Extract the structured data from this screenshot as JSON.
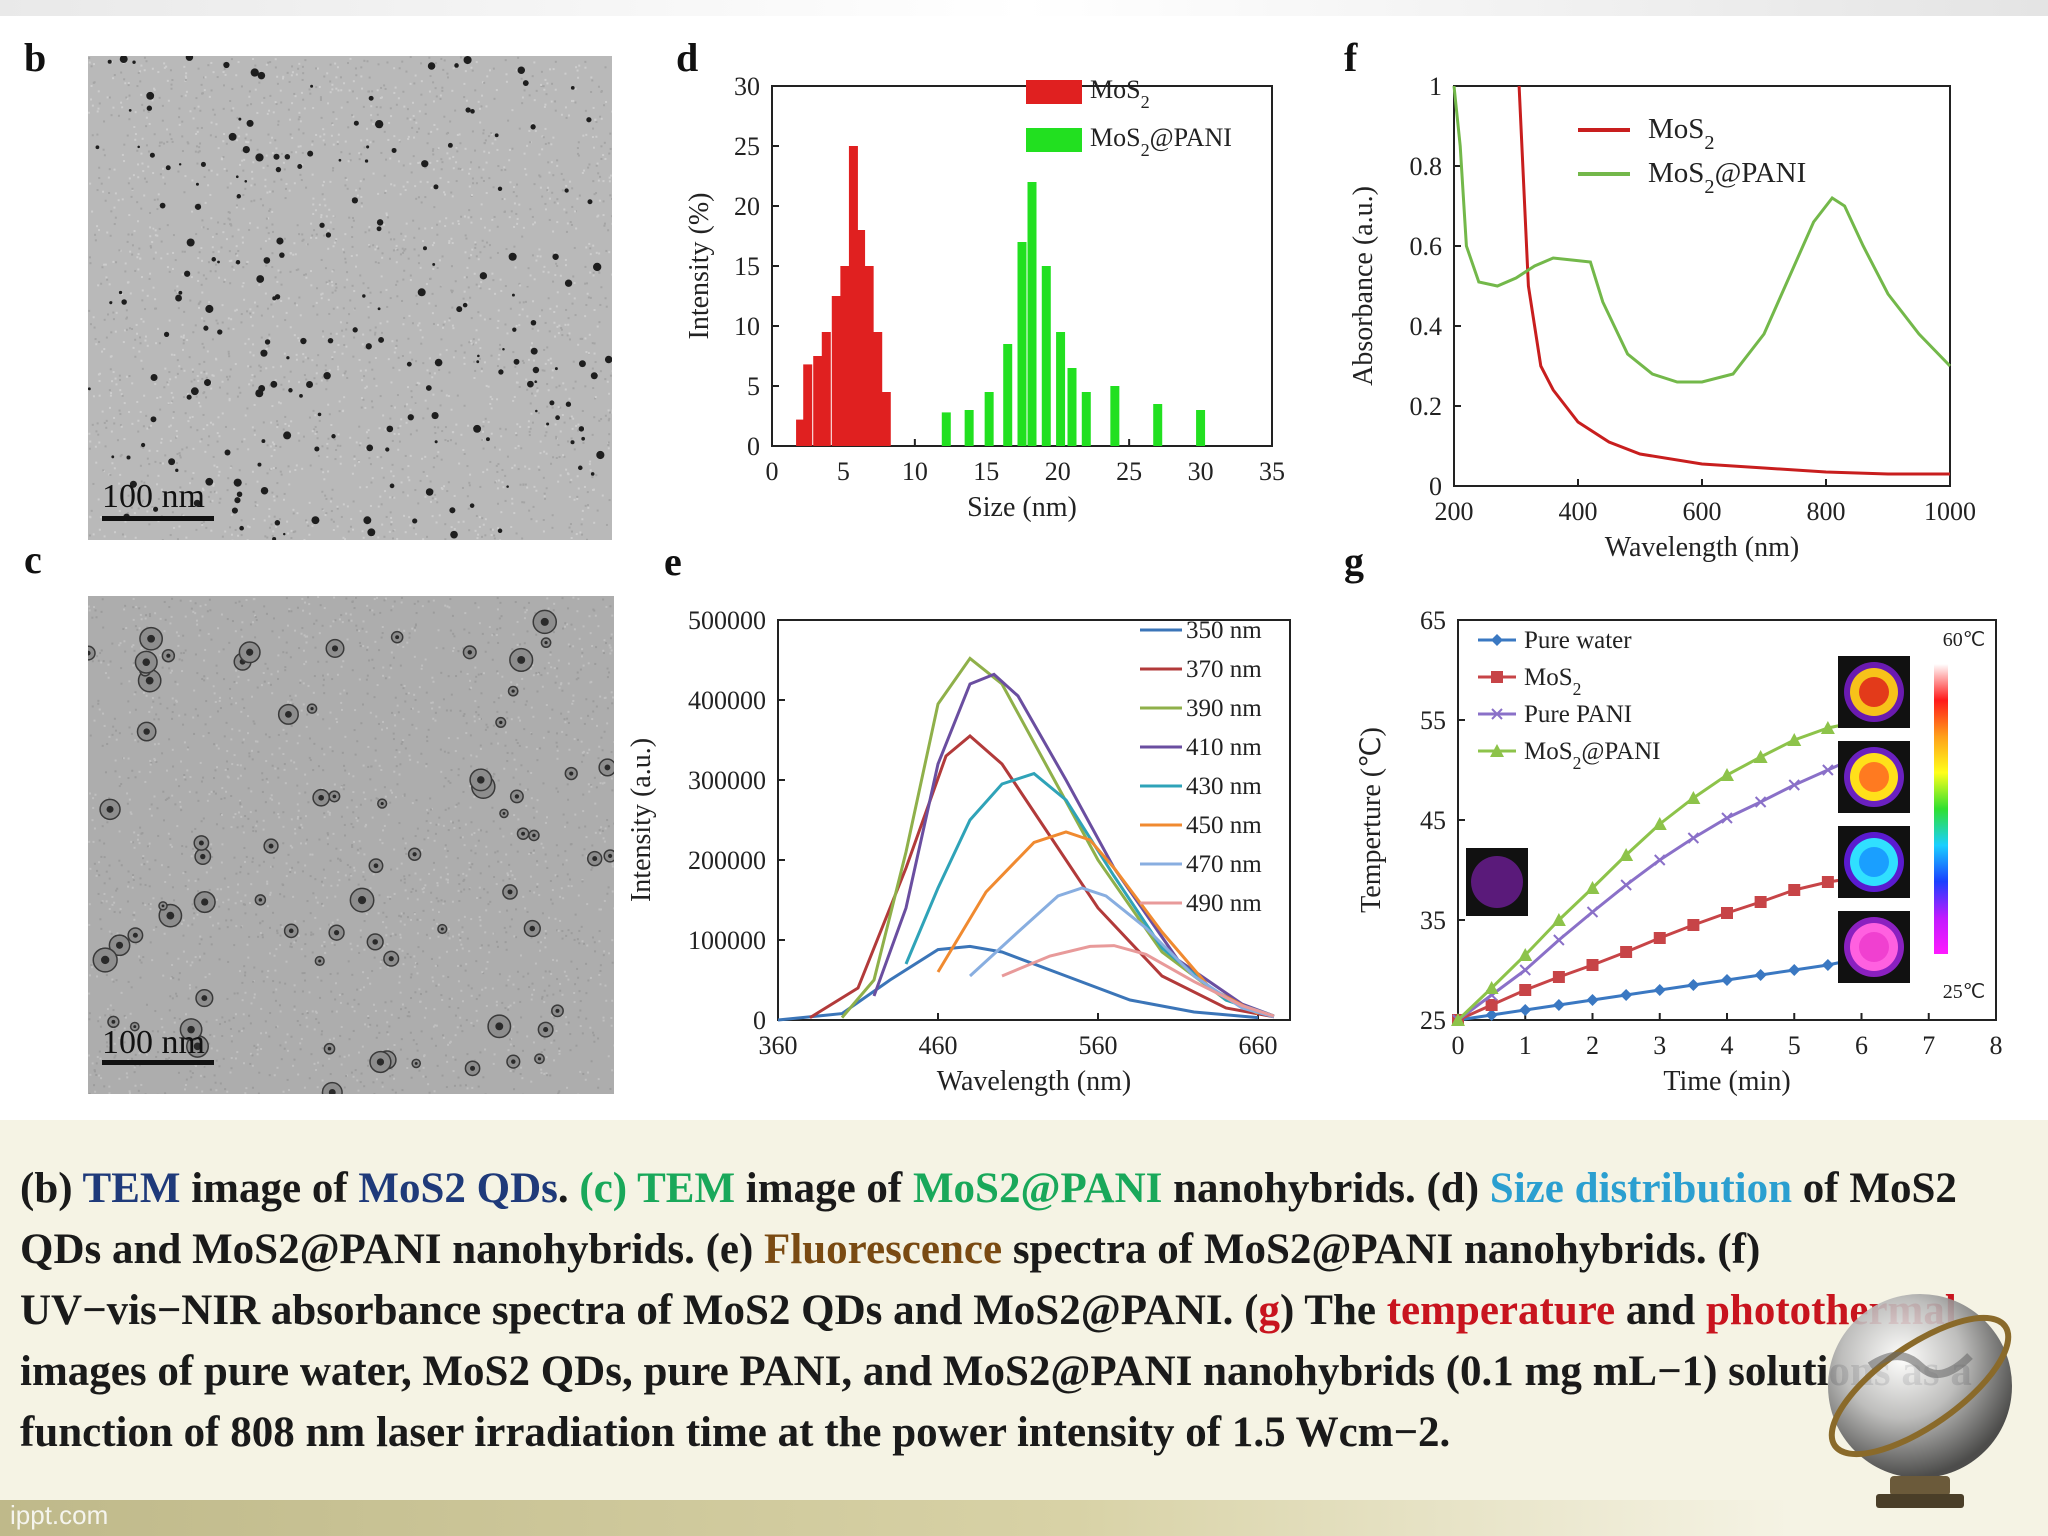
{
  "panels": {
    "b": {
      "letter": "b",
      "scale_label": "100 nm"
    },
    "c": {
      "letter": "c",
      "scale_label": "100 nm"
    },
    "d": {
      "letter": "d"
    },
    "e": {
      "letter": "e"
    },
    "f": {
      "letter": "f"
    },
    "g": {
      "letter": "g"
    }
  },
  "chart_data": [
    {
      "id": "d",
      "type": "bar",
      "xlabel": "Size (nm)",
      "ylabel": "Intensity (%)",
      "xlim": [
        0,
        35
      ],
      "ylim": [
        0,
        30
      ],
      "xticks": [
        0,
        5,
        10,
        15,
        20,
        25,
        30,
        35
      ],
      "yticks": [
        0,
        5,
        10,
        15,
        20,
        25,
        30
      ],
      "legend_position": "top-right",
      "series": [
        {
          "name": "MoS2",
          "color": "#e02020",
          "x": [
            2.0,
            2.5,
            3.2,
            3.8,
            4.5,
            5.1,
            5.7,
            6.2,
            6.8,
            7.4,
            8.0
          ],
          "values": [
            2.2,
            6.8,
            7.5,
            9.5,
            12.5,
            15.0,
            25.0,
            18.0,
            15.0,
            9.5,
            4.5
          ]
        },
        {
          "name": "MoS2@PANI",
          "color": "#22e020",
          "x": [
            12.2,
            13.8,
            15.2,
            16.5,
            17.5,
            18.2,
            19.2,
            20.2,
            21.0,
            22.0,
            24.0,
            27.0,
            30.0
          ],
          "values": [
            2.8,
            3.0,
            4.5,
            8.5,
            17.0,
            22.0,
            15.0,
            9.5,
            6.5,
            4.5,
            5.0,
            3.5,
            3.0
          ]
        }
      ]
    },
    {
      "id": "e",
      "type": "line",
      "xlabel": "Wavelength (nm)",
      "ylabel": "Intensity (a.u.)",
      "xlim": [
        360,
        680
      ],
      "ylim": [
        0,
        500000
      ],
      "xticks": [
        360,
        460,
        560,
        660
      ],
      "yticks": [
        0,
        100000,
        200000,
        300000,
        400000,
        500000
      ],
      "legend_position": "top-right",
      "series": [
        {
          "name": "350 nm",
          "color": "#3b75b8",
          "x": [
            360,
            400,
            430,
            460,
            480,
            500,
            540,
            580,
            620,
            660
          ],
          "values": [
            0,
            8000,
            50000,
            88000,
            92000,
            85000,
            55000,
            25000,
            10000,
            3000
          ]
        },
        {
          "name": "370 nm",
          "color": "#b23a3a",
          "x": [
            380,
            410,
            440,
            465,
            480,
            500,
            530,
            560,
            600,
            640,
            670
          ],
          "values": [
            3000,
            40000,
            190000,
            330000,
            355000,
            320000,
            230000,
            140000,
            55000,
            15000,
            4000
          ]
        },
        {
          "name": "390 nm",
          "color": "#8fb04a",
          "x": [
            400,
            420,
            440,
            460,
            480,
            500,
            530,
            560,
            600,
            640,
            670
          ],
          "values": [
            3000,
            50000,
            210000,
            395000,
            452000,
            420000,
            310000,
            200000,
            85000,
            25000,
            5000
          ]
        },
        {
          "name": "410 nm",
          "color": "#6a4ea0",
          "x": [
            420,
            440,
            460,
            480,
            495,
            510,
            540,
            570,
            610,
            650,
            670
          ],
          "values": [
            30000,
            140000,
            320000,
            420000,
            432000,
            405000,
            300000,
            190000,
            75000,
            20000,
            5000
          ]
        },
        {
          "name": "430 nm",
          "color": "#2fa3b8",
          "x": [
            440,
            460,
            480,
            500,
            520,
            540,
            570,
            600,
            640,
            670
          ],
          "values": [
            70000,
            165000,
            250000,
            295000,
            308000,
            275000,
            180000,
            90000,
            25000,
            5000
          ]
        },
        {
          "name": "450 nm",
          "color": "#f08a30",
          "x": [
            460,
            490,
            520,
            540,
            555,
            570,
            600,
            630,
            660
          ],
          "values": [
            60000,
            160000,
            222000,
            235000,
            225000,
            190000,
            110000,
            40000,
            8000
          ]
        },
        {
          "name": "470 nm",
          "color": "#88aee0",
          "x": [
            480,
            510,
            535,
            550,
            565,
            590,
            620,
            650,
            670
          ],
          "values": [
            55000,
            110000,
            155000,
            165000,
            155000,
            115000,
            55000,
            15000,
            4000
          ]
        },
        {
          "name": "490 nm",
          "color": "#e89a9a",
          "x": [
            500,
            530,
            555,
            570,
            590,
            620,
            650,
            670
          ],
          "values": [
            55000,
            80000,
            92000,
            93000,
            82000,
            48000,
            18000,
            5000
          ]
        }
      ]
    },
    {
      "id": "f",
      "type": "line",
      "xlabel": "Wavelength (nm)",
      "ylabel": "Absorbance (a.u.)",
      "xlim": [
        200,
        1000
      ],
      "ylim": [
        0,
        1
      ],
      "xticks": [
        200,
        400,
        600,
        800,
        1000
      ],
      "yticks": [
        0,
        0.2,
        0.4,
        0.6,
        0.8,
        1
      ],
      "legend_position": "top-right",
      "series": [
        {
          "name": "MoS2",
          "color": "#c81e1e",
          "x": [
            305,
            320,
            340,
            360,
            380,
            400,
            450,
            500,
            600,
            700,
            800,
            900,
            1000
          ],
          "values": [
            1.0,
            0.5,
            0.3,
            0.24,
            0.2,
            0.16,
            0.11,
            0.08,
            0.055,
            0.045,
            0.035,
            0.03,
            0.03
          ]
        },
        {
          "name": "MoS2@PANI",
          "color": "#73b84a",
          "x": [
            200,
            210,
            220,
            240,
            270,
            300,
            330,
            360,
            390,
            420,
            440,
            480,
            520,
            560,
            600,
            650,
            700,
            740,
            780,
            810,
            830,
            860,
            900,
            950,
            1000
          ],
          "values": [
            1.0,
            0.85,
            0.6,
            0.51,
            0.5,
            0.52,
            0.55,
            0.57,
            0.565,
            0.56,
            0.46,
            0.33,
            0.28,
            0.26,
            0.26,
            0.28,
            0.38,
            0.52,
            0.66,
            0.72,
            0.7,
            0.6,
            0.48,
            0.38,
            0.3
          ]
        }
      ]
    },
    {
      "id": "g",
      "type": "line",
      "xlabel": "Time (min)",
      "ylabel": "Temperture (℃)",
      "xlim": [
        0,
        8
      ],
      "ylim": [
        25,
        65
      ],
      "xticks": [
        0,
        1,
        2,
        3,
        4,
        5,
        6,
        7,
        8
      ],
      "yticks": [
        25,
        35,
        45,
        55,
        65
      ],
      "legend_position": "top-left",
      "colorbar": {
        "top_label": "60℃",
        "bottom_label": "25℃"
      },
      "series": [
        {
          "name": "Pure water",
          "color": "#3a78c2",
          "marker": "diamond",
          "x": [
            0,
            0.5,
            1,
            1.5,
            2,
            2.5,
            3,
            3.5,
            4,
            4.5,
            5,
            5.5,
            6
          ],
          "values": [
            25,
            25.5,
            26,
            26.5,
            27,
            27.5,
            28,
            28.5,
            29,
            29.5,
            30,
            30.5,
            31.2
          ]
        },
        {
          "name": "MoS2",
          "color": "#c74447",
          "marker": "square",
          "x": [
            0,
            0.5,
            1,
            1.5,
            2,
            2.5,
            3,
            3.5,
            4,
            4.5,
            5,
            5.5,
            6
          ],
          "values": [
            25,
            26.5,
            28,
            29.3,
            30.5,
            31.8,
            33.2,
            34.5,
            35.7,
            36.8,
            38,
            38.8,
            39.3
          ]
        },
        {
          "name": "Pure PANI",
          "color": "#8a70c8",
          "marker": "x",
          "x": [
            0,
            0.5,
            1,
            1.5,
            2,
            2.5,
            3,
            3.5,
            4,
            4.5,
            5,
            5.5,
            6
          ],
          "values": [
            25,
            27.5,
            30,
            33,
            35.8,
            38.5,
            41,
            43.2,
            45.2,
            46.8,
            48.5,
            50,
            51.5
          ]
        },
        {
          "name": "MoS2@PANI",
          "color": "#8dc34a",
          "marker": "triangle",
          "x": [
            0,
            0.5,
            1,
            1.5,
            2,
            2.5,
            3,
            3.5,
            4,
            4.5,
            5,
            5.5,
            6
          ],
          "values": [
            25,
            28.2,
            31.5,
            35,
            38.2,
            41.5,
            44.6,
            47.2,
            49.5,
            51.3,
            53,
            54.2,
            54.9
          ]
        }
      ]
    }
  ],
  "caption": {
    "s1": "(b) ",
    "s2": "TEM",
    "s3": " image of ",
    "s4": "MoS2 QDs",
    "s5": ". ",
    "s6": "(c) TEM",
    "s7": " image of  ",
    "s8": "MoS2@PANI",
    "s9": " nanohybrids. (d) ",
    "s10": "Size distribution",
    "s11": " of MoS2 QDs and MoS2@PANI nanohybrids. (e) ",
    "s12": "Fluorescence",
    "s13": " spectra of MoS2@PANI nanohybrids. (f) UV−vis−NIR absorbance spectra of MoS2 QDs and MoS2@PANI. (",
    "s14": "g",
    "s15": ") The ",
    "s16": "temperature",
    "s17": " and ",
    "s18": "photothermal",
    "s19": " images of pure water, MoS2 QDs, pure PANI, and MoS2@PANI nanohybrids (0.1 mg mL−1) solutions as a function of 808 nm laser irradiation time at the power intensity of 1.5 Wcm−2."
  },
  "branding": "ippt.com",
  "colors": {
    "caption_blue": "#1f3a7a",
    "caption_green": "#19a85a",
    "caption_cyan": "#2b9fd0",
    "caption_brown": "#7a4a12",
    "caption_red": "#c8141e"
  }
}
